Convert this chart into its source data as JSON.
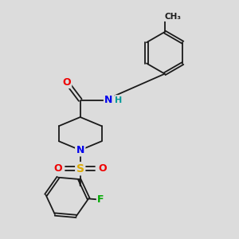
{
  "bg_color": "#dcdcdc",
  "bond_color": "#1a1a1a",
  "atom_colors": {
    "N": "#0000ee",
    "O": "#ee0000",
    "S": "#ddaa00",
    "F": "#00aa00",
    "H": "#009999",
    "C": "#1a1a1a"
  },
  "figsize": [
    3.0,
    3.0
  ],
  "dpi": 100,
  "xlim": [
    0,
    10
  ],
  "ylim": [
    0,
    10
  ]
}
